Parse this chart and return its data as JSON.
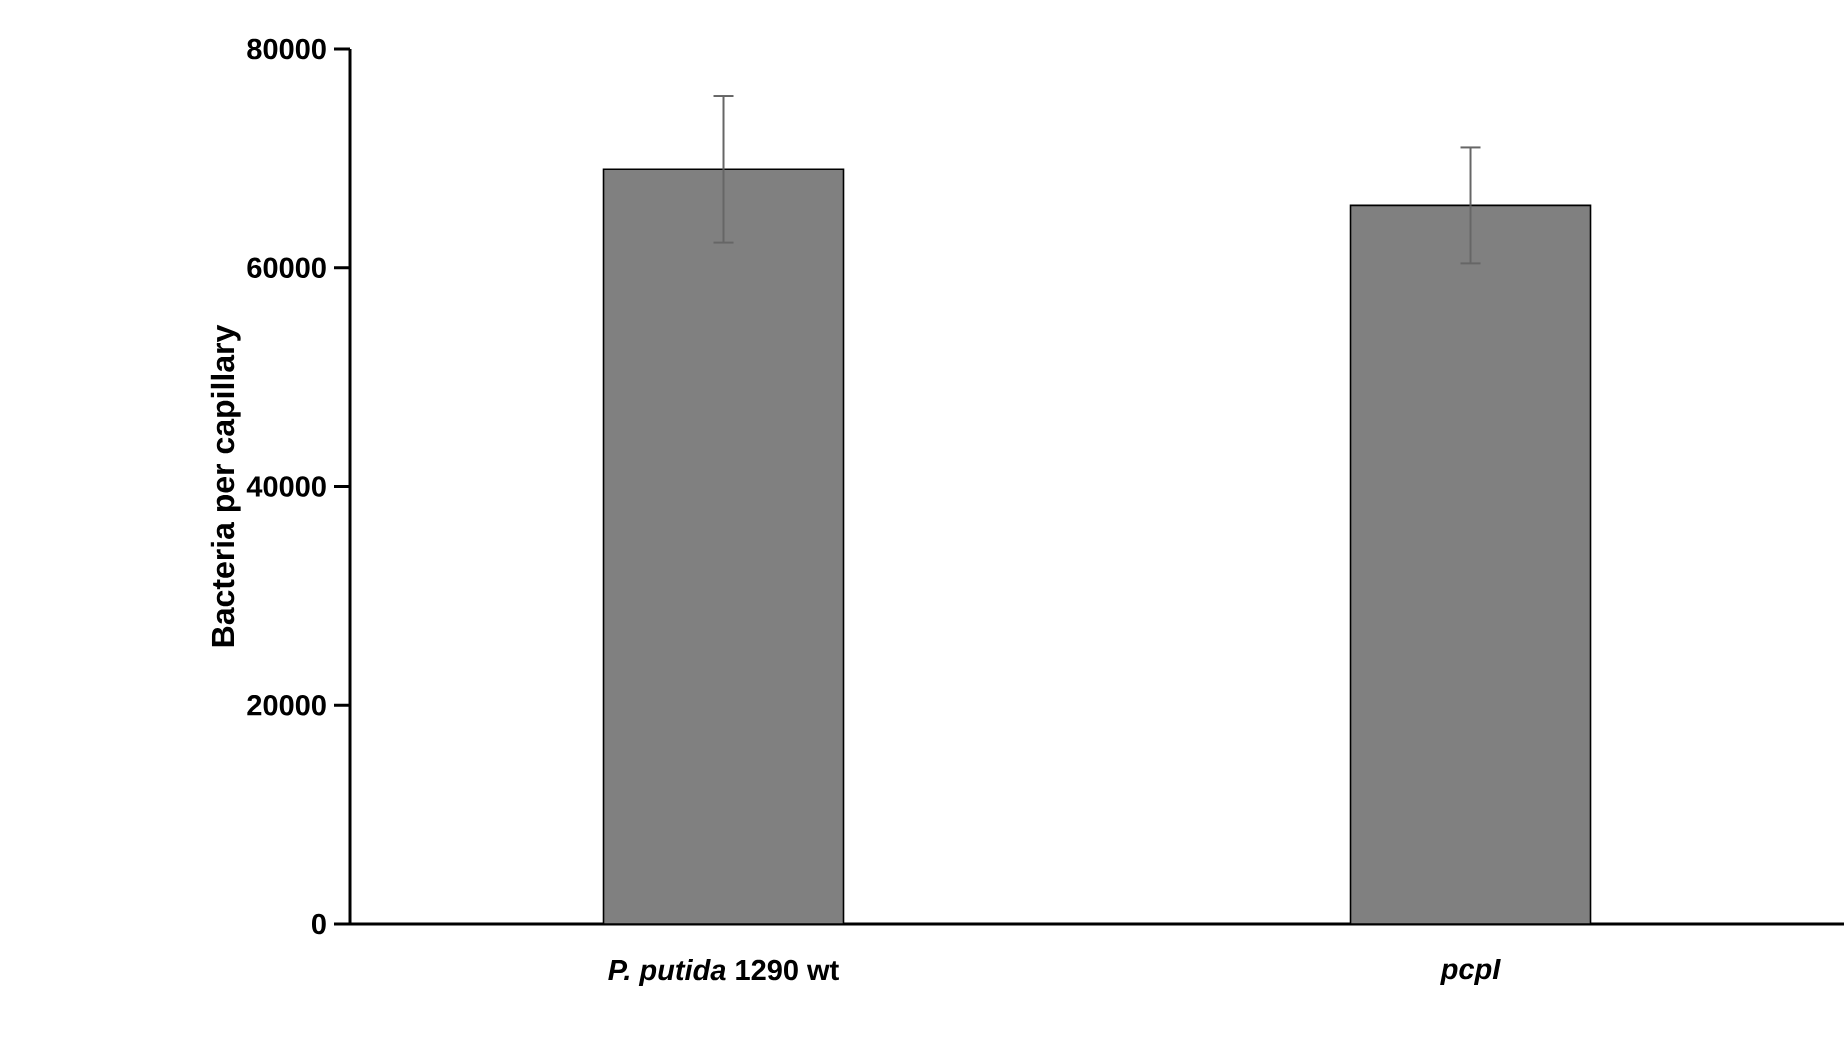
{
  "chart_data": {
    "type": "bar",
    "ylabel": "Bacteria per capillary",
    "categories": [
      "*P. putida* 1290 wt",
      "pcpI"
    ],
    "values": [
      69000,
      65700
    ],
    "errors": [
      6700,
      5300
    ],
    "color": "#808080",
    "ylim": [
      0,
      80000
    ],
    "yticks": [
      0,
      20000,
      40000,
      60000,
      80000
    ]
  }
}
